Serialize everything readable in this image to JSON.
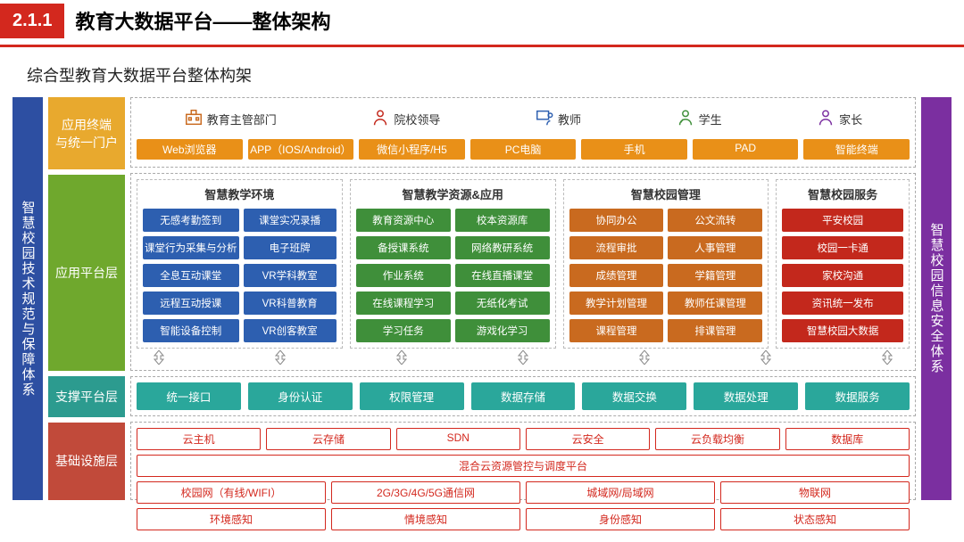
{
  "header": {
    "number": "2.1.1",
    "title": "教育大数据平台——整体架构",
    "subtitle": "综合型教育大数据平台整体构架"
  },
  "colors": {
    "badge": "#d3281e",
    "left_bar": "#2d4fa2",
    "right_bar": "#7b2fa0",
    "layer1": "#e8a92e",
    "layer1_pill": "#e99018",
    "layer2": "#6fa82d",
    "layer3": "#2c9b8f",
    "layer3_pill": "#2aa79b",
    "layer4": "#c14a3a",
    "layer4_pill": "#d3281e",
    "group_env": "#2d5fb0",
    "group_res": "#3f8f3a",
    "group_mgmt": "#c96a1f",
    "group_svc": "#c3281c"
  },
  "left_bar": "智慧校园技术规范与保障体系",
  "right_bar": "智慧校园信息安全体系",
  "layer_labels": [
    "应用终端\n与统一门户",
    "应用平台层",
    "支撑平台层",
    "基础设施层"
  ],
  "layer_heights": [
    82,
    222,
    46,
    88
  ],
  "roles": [
    {
      "label": "教育主管部门",
      "color": "#c96a1f"
    },
    {
      "label": "院校领导",
      "color": "#c3281c"
    },
    {
      "label": "教师",
      "color": "#2d5fb0"
    },
    {
      "label": "学生",
      "color": "#3f8f3a"
    },
    {
      "label": "家长",
      "color": "#7b2fa0"
    }
  ],
  "terminals": [
    "Web浏览器",
    "APP（IOS/Android）",
    "微信小程序/H5",
    "PC电脑",
    "手机",
    "PAD",
    "智能终端"
  ],
  "app_groups": [
    {
      "title": "智慧教学环境",
      "color_key": "group_env",
      "cols": 2,
      "flex": 1.15,
      "items": [
        "无感考勤签到",
        "课堂实况录播",
        "课堂行为采集与分析",
        "电子班牌",
        "全息互动课堂",
        "VR学科教室",
        "远程互动授课",
        "VR科普教育",
        "智能设备控制",
        "VR创客教室"
      ]
    },
    {
      "title": "智慧教学资源&应用",
      "color_key": "group_res",
      "cols": 2,
      "flex": 1.15,
      "items": [
        "教育资源中心",
        "校本资源库",
        "备授课系统",
        "网络教研系统",
        "作业系统",
        "在线直播课堂",
        "在线课程学习",
        "无纸化考试",
        "学习任务",
        "游戏化学习"
      ]
    },
    {
      "title": "智慧校园管理",
      "color_key": "group_mgmt",
      "cols": 2,
      "flex": 1.15,
      "items": [
        "协同办公",
        "公文流转",
        "流程审批",
        "人事管理",
        "成绩管理",
        "学籍管理",
        "教学计划管理",
        "教师任课管理",
        "课程管理",
        "排课管理"
      ]
    },
    {
      "title": "智慧校园服务",
      "color_key": "group_svc",
      "cols": 1,
      "flex": 0.72,
      "items": [
        "平安校园",
        "校园一卡通",
        "家校沟通",
        "资讯统一发布",
        "智慧校园大数据"
      ]
    }
  ],
  "support": [
    "统一接口",
    "身份认证",
    "权限管理",
    "数据存储",
    "数据交换",
    "数据处理",
    "数据服务"
  ],
  "infra": {
    "row1": [
      "云主机",
      "云存储",
      "SDN",
      "云安全",
      "云负载均衡",
      "数据库"
    ],
    "wide": "混合云资源管控与调度平台",
    "row2": [
      "校园网（有线/WIFI）",
      "2G/3G/4G/5G通信网",
      "城域网/局域网",
      "物联网"
    ],
    "row3": [
      "环境感知",
      "情境感知",
      "身份感知",
      "状态感知"
    ]
  }
}
